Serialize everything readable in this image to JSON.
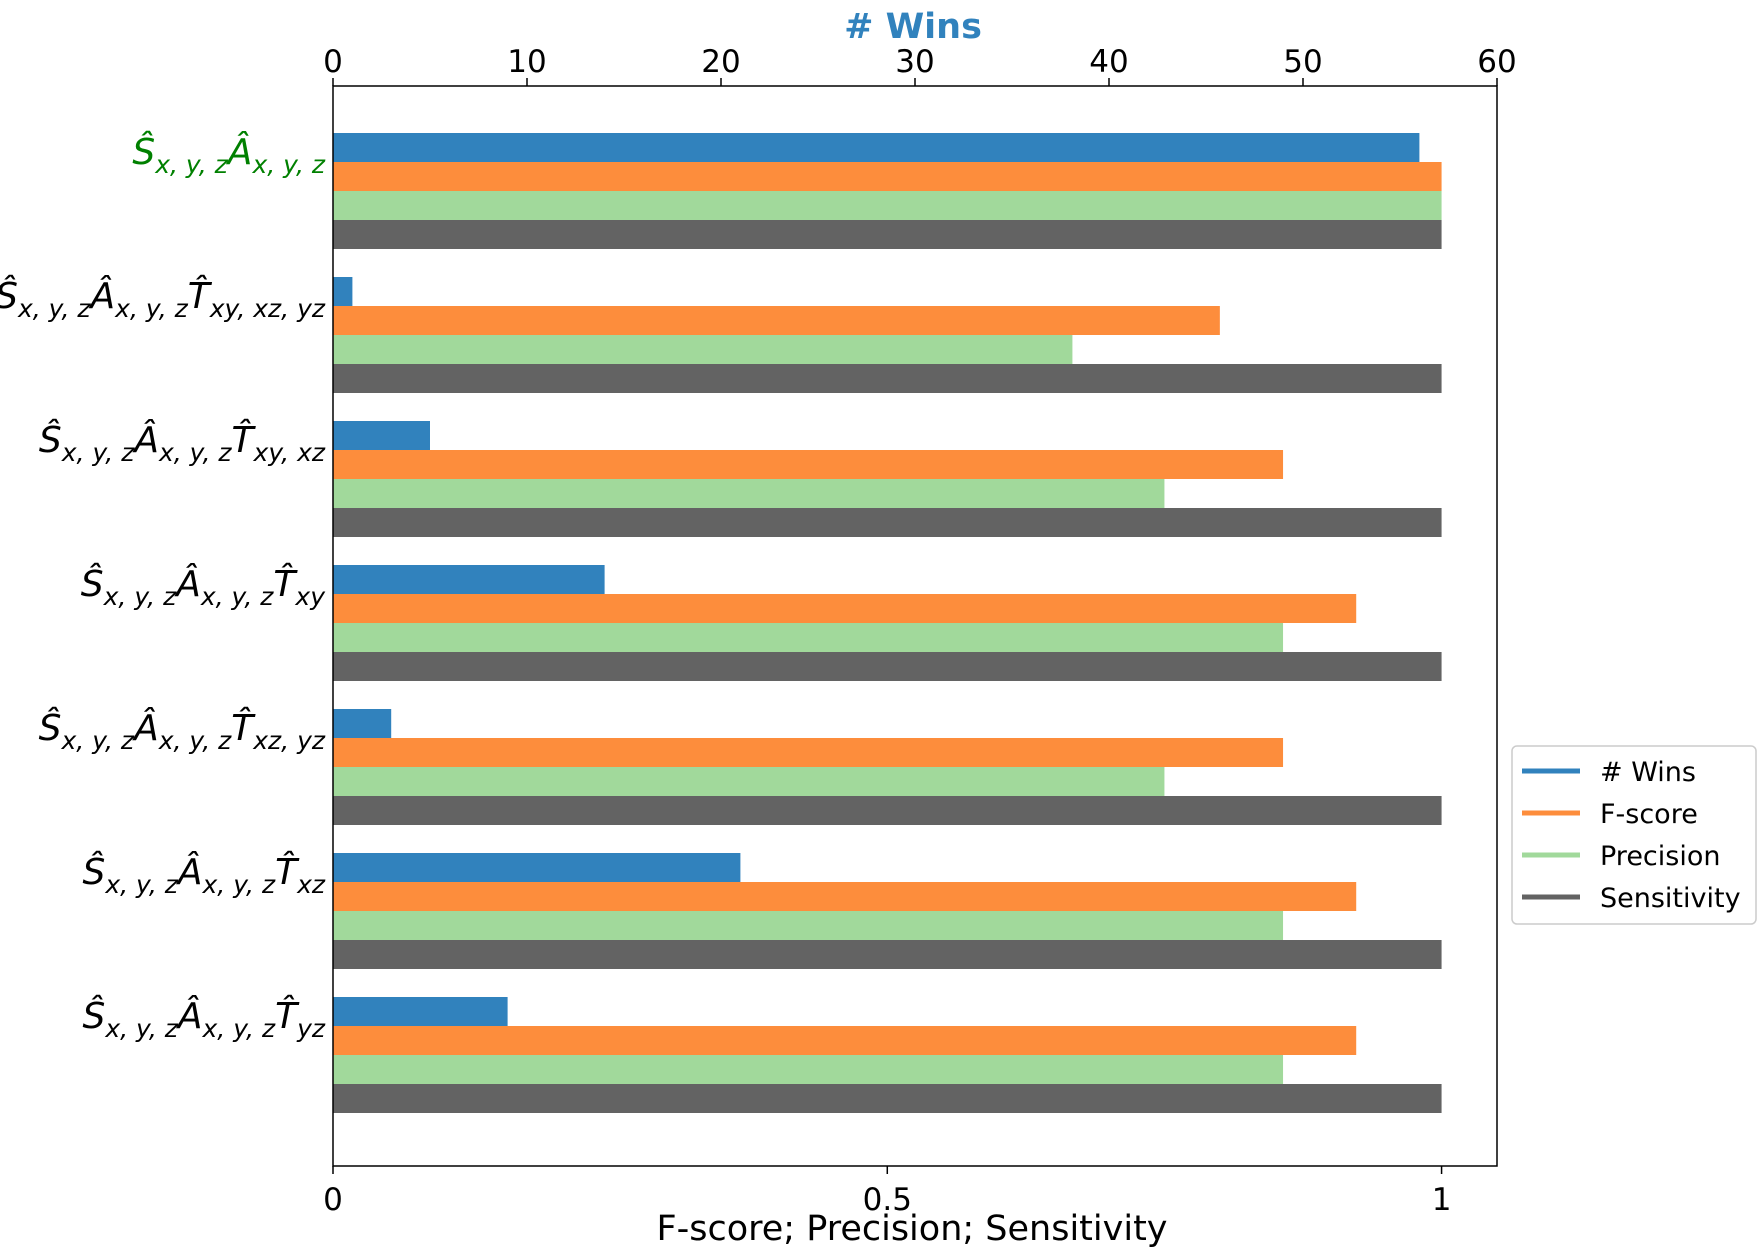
{
  "chart_data": {
    "type": "bar",
    "orientation": "horizontal",
    "top_axis": {
      "title": "# Wins",
      "range": [
        0,
        60
      ],
      "ticks": [
        0,
        10,
        20,
        30,
        40,
        50,
        60
      ]
    },
    "bottom_axis": {
      "title": "F-score; Precision; Sensitivity",
      "range": [
        0,
        1.05
      ],
      "ticks": [
        0,
        0.5,
        1
      ],
      "tick_labels": [
        "0",
        "0.5",
        "1"
      ]
    },
    "categories": [
      {
        "label": [
          {
            "t": "Ŝ"
          },
          {
            "t": "x, y, z",
            "sub": true
          },
          {
            "t": "Â"
          },
          {
            "t": "x, y, z",
            "sub": true
          }
        ],
        "highlight": true
      },
      {
        "label": [
          {
            "t": "Ŝ"
          },
          {
            "t": "x, y, z",
            "sub": true
          },
          {
            "t": "Â"
          },
          {
            "t": "x, y, z",
            "sub": true
          },
          {
            "t": "T̂"
          },
          {
            "t": "xy, xz, yz",
            "sub": true
          }
        ]
      },
      {
        "label": [
          {
            "t": "Ŝ"
          },
          {
            "t": "x, y, z",
            "sub": true
          },
          {
            "t": "Â"
          },
          {
            "t": "x, y, z",
            "sub": true
          },
          {
            "t": "T̂"
          },
          {
            "t": "xy, xz",
            "sub": true
          }
        ]
      },
      {
        "label": [
          {
            "t": "Ŝ"
          },
          {
            "t": "x, y, z",
            "sub": true
          },
          {
            "t": "Â"
          },
          {
            "t": "x, y, z",
            "sub": true
          },
          {
            "t": "T̂"
          },
          {
            "t": "xy",
            "sub": true
          }
        ]
      },
      {
        "label": [
          {
            "t": "Ŝ"
          },
          {
            "t": "x, y, z",
            "sub": true
          },
          {
            "t": "Â"
          },
          {
            "t": "x, y, z",
            "sub": true
          },
          {
            "t": "T̂"
          },
          {
            "t": "xz, yz",
            "sub": true
          }
        ]
      },
      {
        "label": [
          {
            "t": "Ŝ"
          },
          {
            "t": "x, y, z",
            "sub": true
          },
          {
            "t": "Â"
          },
          {
            "t": "x, y, z",
            "sub": true
          },
          {
            "t": "T̂"
          },
          {
            "t": "xz",
            "sub": true
          }
        ]
      },
      {
        "label": [
          {
            "t": "Ŝ"
          },
          {
            "t": "x, y, z",
            "sub": true
          },
          {
            "t": "Â"
          },
          {
            "t": "x, y, z",
            "sub": true
          },
          {
            "t": "T̂"
          },
          {
            "t": "yz",
            "sub": true
          }
        ]
      }
    ],
    "series": [
      {
        "name": "# Wins",
        "axis": "top",
        "color": "#3182bd",
        "values": [
          56,
          1,
          5,
          14,
          3,
          21,
          9
        ]
      },
      {
        "name": "F-score",
        "axis": "bottom",
        "color": "#fd8d3c",
        "values": [
          1.0,
          0.8,
          0.857,
          0.923,
          0.857,
          0.923,
          0.923
        ]
      },
      {
        "name": "Precision",
        "axis": "bottom",
        "color": "#a1d99b",
        "values": [
          1.0,
          0.667,
          0.75,
          0.857,
          0.75,
          0.857,
          0.857
        ]
      },
      {
        "name": "Sensitivity",
        "axis": "bottom",
        "color": "#636363",
        "values": [
          1.0,
          1.0,
          1.0,
          1.0,
          1.0,
          1.0,
          1.0
        ]
      }
    ],
    "highlight_color": "#008000",
    "top_title_color": "#3182bd",
    "legend": {
      "placement": "right"
    },
    "grid": false
  }
}
